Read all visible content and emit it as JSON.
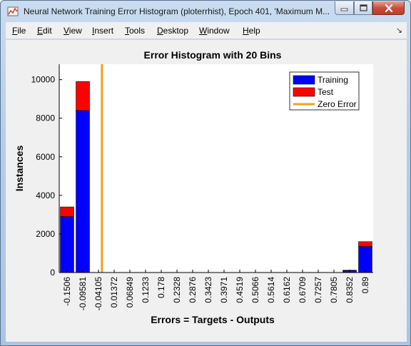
{
  "window": {
    "title": "Neural Network Training Error Histogram (ploterrhist), Epoch 401, 'Maximum M...",
    "icon": "matlab-figure-icon",
    "controls": {
      "minimize": "minimize-icon",
      "maximize": "maximize-icon",
      "close": "close-icon"
    }
  },
  "menubar": {
    "items": [
      {
        "label": "File",
        "key": "F",
        "rest": "ile"
      },
      {
        "label": "Edit",
        "key": "E",
        "rest": "dit"
      },
      {
        "label": "View",
        "key": "V",
        "rest": "iew"
      },
      {
        "label": "Insert",
        "key": "I",
        "rest": "nsert"
      },
      {
        "label": "Tools",
        "key": "T",
        "rest": "ools"
      },
      {
        "label": "Desktop",
        "key": "D",
        "rest": "esktop"
      },
      {
        "label": "Window",
        "key": "W",
        "rest": "indow"
      },
      {
        "label": "Help",
        "key": "H",
        "rest": "elp"
      }
    ],
    "dock_icon": "dock-arrow-icon"
  },
  "colors": {
    "training": "#0000ff",
    "test": "#ff0000",
    "zero_error": "#f0a020"
  },
  "chart_data": {
    "type": "bar",
    "stacked": true,
    "title": "Error Histogram with 20 Bins",
    "xlabel": "Errors = Targets - Outputs",
    "ylabel": "Instances",
    "ylim": [
      0,
      10800
    ],
    "yticks": [
      0,
      2000,
      4000,
      6000,
      8000,
      10000
    ],
    "categories": [
      "-0.1506",
      "-0.09581",
      "-0.04105",
      "0.01372",
      "0.06849",
      "0.1233",
      "0.178",
      "0.2328",
      "0.2876",
      "0.3423",
      "0.3971",
      "0.4519",
      "0.5066",
      "0.5614",
      "0.6162",
      "0.6709",
      "0.7257",
      "0.7805",
      "0.8352",
      "0.89"
    ],
    "series": [
      {
        "name": "Training",
        "values": [
          2900,
          8400,
          0,
          0,
          0,
          0,
          0,
          0,
          0,
          0,
          0,
          0,
          0,
          0,
          0,
          0,
          0,
          0,
          100,
          1350
        ]
      },
      {
        "name": "Test",
        "values": [
          500,
          1500,
          0,
          0,
          0,
          0,
          0,
          0,
          0,
          0,
          0,
          0,
          0,
          0,
          0,
          0,
          0,
          0,
          20,
          250
        ]
      }
    ],
    "zero_error": {
      "name": "Zero Error",
      "x_index": 2.72
    },
    "legend_position": "top-right",
    "grid": false
  }
}
